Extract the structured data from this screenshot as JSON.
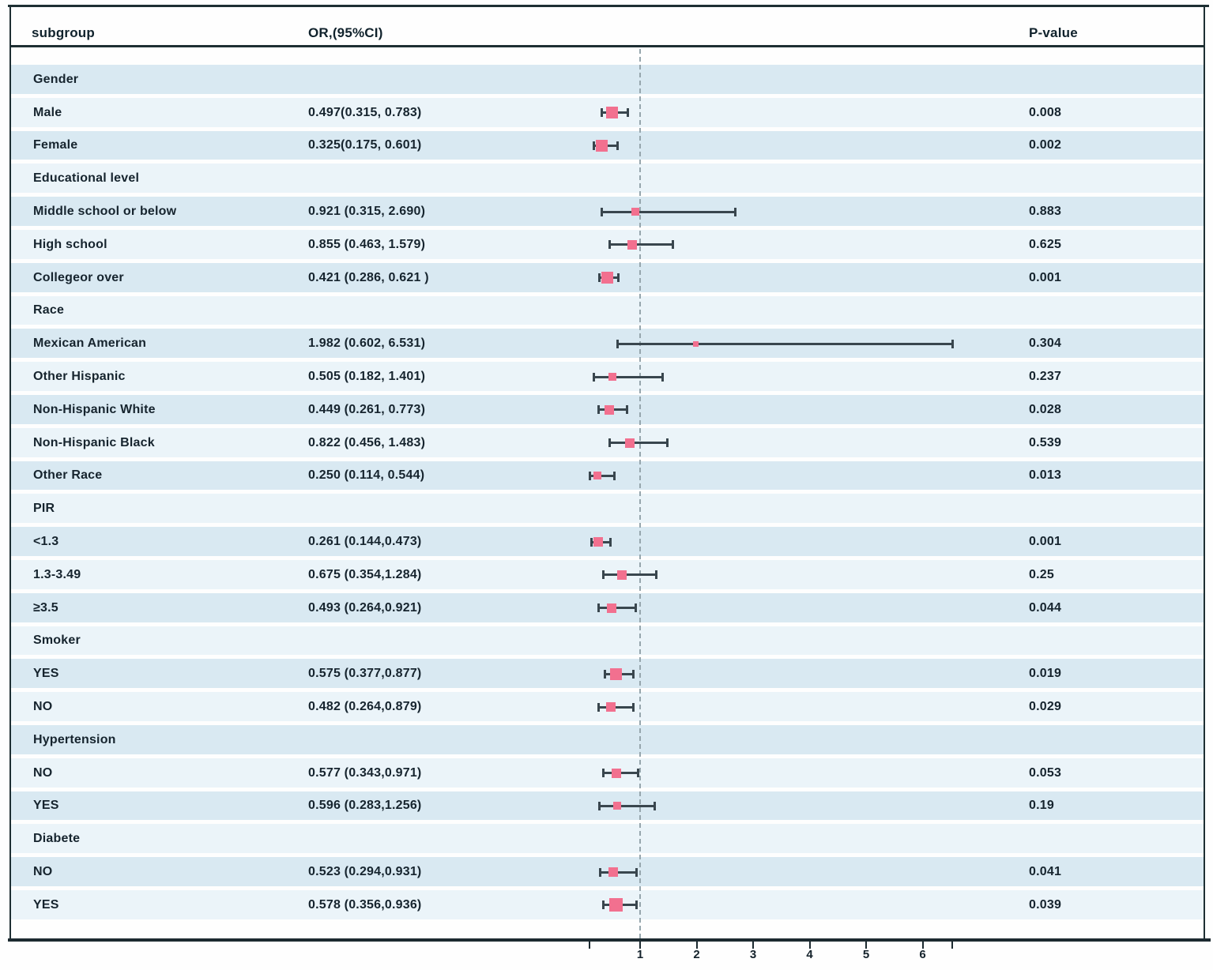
{
  "header": {
    "subgroup": "subgroup",
    "or_ci": "OR,(95%CI)",
    "p_value": "P-value"
  },
  "colors": {
    "marker": "#f2708f",
    "error_bar": "#39464e",
    "stripe_dark": "#d9e9f2",
    "stripe_light": "#ebf4f9",
    "reference_line": "#96a6ad",
    "border": "#1e2f33",
    "text": "#16242e"
  },
  "chart_data": {
    "type": "forest",
    "title": "",
    "xlabel": "",
    "axis": {
      "ticks": [
        1,
        2,
        3,
        4,
        5,
        6
      ],
      "unlabeled_ticks": [
        0.1,
        6.53
      ],
      "range": [
        0.1,
        6.55
      ],
      "reference_line": 1,
      "grid": false
    },
    "rows": [
      {
        "kind": "category",
        "label": "Gender"
      },
      {
        "kind": "data",
        "label": "Male",
        "or_ci_text": "0.497(0.315, 0.783)",
        "or": 0.497,
        "lo": 0.315,
        "hi": 0.783,
        "p": "0.008",
        "size": "md"
      },
      {
        "kind": "data",
        "label": "Female",
        "or_ci_text": "0.325(0.175, 0.601)",
        "or": 0.325,
        "lo": 0.175,
        "hi": 0.601,
        "p": "0.002",
        "size": "md"
      },
      {
        "kind": "category",
        "label": "Educational level"
      },
      {
        "kind": "data",
        "label": "Middle school or below",
        "or_ci_text": "0.921 (0.315, 2.690)",
        "or": 0.921,
        "lo": 0.315,
        "hi": 2.69,
        "p": "0.883",
        "size": "sm"
      },
      {
        "kind": "data",
        "label": "High school",
        "or_ci_text": "0.855 (0.463, 1.579)",
        "or": 0.855,
        "lo": 0.463,
        "hi": 1.579,
        "p": "0.625",
        "size": "smd"
      },
      {
        "kind": "data",
        "label": "Collegeor over",
        "or_ci_text": "0.421 (0.286, 0.621 )",
        "or": 0.421,
        "lo": 0.286,
        "hi": 0.621,
        "p": "0.001",
        "size": "md"
      },
      {
        "kind": "category",
        "label": "Race"
      },
      {
        "kind": "data",
        "label": "Mexican American",
        "or_ci_text": "1.982 (0.602, 6.531)",
        "or": 1.982,
        "lo": 0.602,
        "hi": 6.531,
        "p": "0.304",
        "size": "xs"
      },
      {
        "kind": "data",
        "label": "Other Hispanic",
        "or_ci_text": "0.505 (0.182, 1.401)",
        "or": 0.505,
        "lo": 0.182,
        "hi": 1.401,
        "p": "0.237",
        "size": "sm"
      },
      {
        "kind": "data",
        "label": "Non-Hispanic White",
        "or_ci_text": "0.449 (0.261, 0.773)",
        "or": 0.449,
        "lo": 0.261,
        "hi": 0.773,
        "p": "0.028",
        "size": "smd"
      },
      {
        "kind": "data",
        "label": "Non-Hispanic Black",
        "or_ci_text": "0.822 (0.456, 1.483)",
        "or": 0.822,
        "lo": 0.456,
        "hi": 1.483,
        "p": "0.539",
        "size": "smd"
      },
      {
        "kind": "data",
        "label": "Other Race",
        "or_ci_text": "0.250 (0.114, 0.544)",
        "or": 0.25,
        "lo": 0.114,
        "hi": 0.544,
        "p": "0.013",
        "size": "sm"
      },
      {
        "kind": "category",
        "label": "PIR"
      },
      {
        "kind": "data",
        "label": "<1.3",
        "or_ci_text": "0.261 (0.144,0.473)",
        "or": 0.261,
        "lo": 0.144,
        "hi": 0.473,
        "p": "0.001",
        "size": "smd"
      },
      {
        "kind": "data",
        "label": "1.3-3.49",
        "or_ci_text": "0.675 (0.354,1.284)",
        "or": 0.675,
        "lo": 0.354,
        "hi": 1.284,
        "p": "0.25",
        "size": "smd"
      },
      {
        "kind": "data",
        "label": "≥3.5",
        "or_ci_text": "0.493 (0.264,0.921)",
        "or": 0.493,
        "lo": 0.264,
        "hi": 0.921,
        "p": "0.044",
        "size": "smd"
      },
      {
        "kind": "category",
        "label": "Smoker"
      },
      {
        "kind": "data",
        "label": "YES",
        "or_ci_text": "0.575 (0.377,0.877)",
        "or": 0.575,
        "lo": 0.377,
        "hi": 0.877,
        "p": "0.019",
        "size": "md"
      },
      {
        "kind": "data",
        "label": "NO",
        "or_ci_text": "0.482 (0.264,0.879)",
        "or": 0.482,
        "lo": 0.264,
        "hi": 0.879,
        "p": "0.029",
        "size": "smd"
      },
      {
        "kind": "category",
        "label": "Hypertension"
      },
      {
        "kind": "data",
        "label": "NO",
        "or_ci_text": "0.577 (0.343,0.971)",
        "or": 0.577,
        "lo": 0.343,
        "hi": 0.971,
        "p": "0.053",
        "size": "smd"
      },
      {
        "kind": "data",
        "label": "YES",
        "or_ci_text": "0.596 (0.283,1.256)",
        "or": 0.596,
        "lo": 0.283,
        "hi": 1.256,
        "p": "0.19",
        "size": "sm"
      },
      {
        "kind": "category",
        "label": "Diabete"
      },
      {
        "kind": "data",
        "label": "NO",
        "or_ci_text": "0.523 (0.294,0.931)",
        "or": 0.523,
        "lo": 0.294,
        "hi": 0.931,
        "p": "0.041",
        "size": "smd"
      },
      {
        "kind": "data",
        "label": "YES",
        "or_ci_text": "0.578 (0.356,0.936)",
        "or": 0.578,
        "lo": 0.356,
        "hi": 0.936,
        "p": "0.039",
        "size": "lg"
      }
    ]
  }
}
